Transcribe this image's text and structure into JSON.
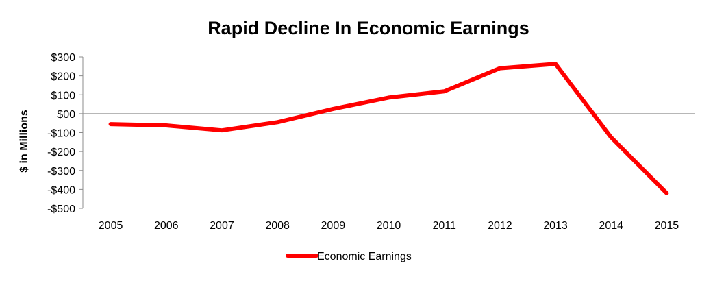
{
  "chart_data": {
    "type": "line",
    "title": "Rapid Decline In Economic Earnings",
    "xlabel": "",
    "ylabel": "$ in Millions",
    "categories": [
      "2005",
      "2006",
      "2007",
      "2008",
      "2009",
      "2010",
      "2011",
      "2012",
      "2013",
      "2014",
      "2015"
    ],
    "series": [
      {
        "name": "Economic Earnings",
        "color": "#ff0000",
        "values": [
          -55,
          -62,
          -88,
          -45,
          25,
          85,
          118,
          240,
          263,
          -125,
          -420
        ]
      }
    ],
    "ylim": [
      -500,
      300
    ],
    "yticks": [
      300,
      200,
      100,
      0,
      -100,
      -200,
      -300,
      -400,
      -500
    ],
    "ytick_labels": [
      "$300",
      "$200",
      "$100",
      "$00",
      "-$100",
      "-$200",
      "-$300",
      "-$400",
      "-$500"
    ],
    "grid": false,
    "legend_position": "bottom"
  }
}
